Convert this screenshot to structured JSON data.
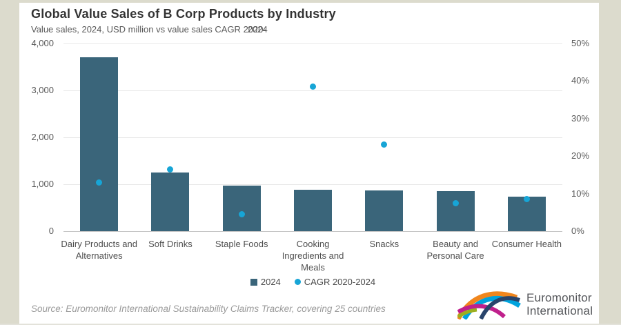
{
  "header": {
    "title": "Global Value Sales of B Corp Products by Industry",
    "subtitle_prefix": "Value sales, 2024, USD million vs value sales CAGR ",
    "subtitle_overlap_a": "2020-",
    "subtitle_overlap_b": "2024"
  },
  "chart_data": {
    "type": "bar",
    "title": "Global Value Sales of B Corp Products by Industry",
    "subtitle": "Value sales, 2024, USD million vs value sales CAGR 2020-2024",
    "categories": [
      "Dairy Products and Alternatives",
      "Soft Drinks",
      "Staple Foods",
      "Cooking Ingredients and Meals",
      "Snacks",
      "Beauty and Personal Care",
      "Consumer Health"
    ],
    "series": [
      {
        "name": "2024",
        "type": "bar",
        "axis": "left",
        "unit": "USD million",
        "color": "#3a657a",
        "values": [
          3700,
          1250,
          970,
          880,
          870,
          850,
          740
        ]
      },
      {
        "name": "CAGR 2020-2024",
        "type": "scatter",
        "axis": "right",
        "unit": "%",
        "color": "#17a5d6",
        "values": [
          13,
          16.5,
          4.5,
          38.5,
          23,
          7.5,
          8.5
        ]
      }
    ],
    "left_axis": {
      "min": 0,
      "max": 4000,
      "ticks": [
        "4,000",
        "3,000",
        "2,000",
        "1,000",
        "0"
      ]
    },
    "right_axis": {
      "min": 0,
      "max": 50,
      "ticks": [
        "50%",
        "40%",
        "30%",
        "20%",
        "10%",
        "0%"
      ]
    },
    "grid": true,
    "legend_position": "bottom"
  },
  "legend": {
    "items": [
      {
        "label": "2024",
        "marker": "square",
        "color": "#3a657a"
      },
      {
        "label": "CAGR 2020-2024",
        "marker": "dot",
        "color": "#17a5d6"
      }
    ]
  },
  "footer": {
    "source": "Source: Euromonitor International Sustainability Claims Tracker, covering 25 countries"
  },
  "logo": {
    "line1": "Euromonitor",
    "line2": "International",
    "colors": {
      "orange": "#f0861d",
      "cyan": "#00a3dd",
      "magenta": "#c0208c",
      "navy": "#29446b",
      "green": "#9caf1f"
    }
  },
  "frame_color": "#dcdbcd"
}
